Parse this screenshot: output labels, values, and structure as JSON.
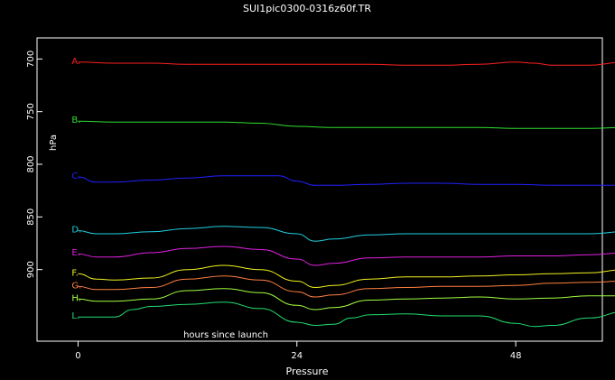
{
  "chart_data": {
    "type": "line",
    "title": "SUI1pic0300-0316z60f.TR",
    "xlabel": "Pressure",
    "ylabel": "hPa",
    "annotation": "hours since launch",
    "xlim": [
      -4.5,
      57.5
    ],
    "ylim": [
      968,
      680
    ],
    "y_inverted": true,
    "grid": false,
    "x_ticks": [
      0,
      24,
      48
    ],
    "x_tick_labels": [
      "0",
      "24",
      "48"
    ],
    "y_ticks": [
      700,
      750,
      800,
      850,
      900
    ],
    "y_tick_labels": [
      "700",
      "750",
      "800",
      "850",
      "900"
    ],
    "series": [
      {
        "name": "A.",
        "color": "#ff2020",
        "x": [
          0,
          4,
          8,
          12,
          16,
          20,
          24,
          28,
          32,
          36,
          40,
          44,
          48,
          50,
          52,
          56,
          60
        ],
        "y": [
          703,
          704,
          704,
          705,
          705,
          705,
          705,
          705,
          705,
          706,
          706,
          705,
          703,
          704,
          706,
          706,
          703
        ]
      },
      {
        "name": "B.",
        "color": "#30e030",
        "x": [
          0,
          4,
          8,
          12,
          16,
          20,
          24,
          28,
          32,
          36,
          40,
          44,
          48,
          52,
          56,
          60
        ],
        "y": [
          759,
          760,
          760,
          760,
          760,
          761,
          764,
          765,
          765,
          765,
          765,
          765,
          766,
          766,
          766,
          765
        ]
      },
      {
        "name": "C.",
        "color": "#2020ff",
        "x": [
          0,
          2,
          4,
          8,
          12,
          16,
          20,
          22,
          24,
          26,
          28,
          32,
          36,
          40,
          44,
          48,
          52,
          56,
          60
        ],
        "y": [
          812,
          817,
          817,
          815,
          813,
          811,
          811,
          811,
          816,
          820,
          820,
          819,
          818,
          818,
          819,
          819,
          820,
          820,
          820
        ]
      },
      {
        "name": "D.",
        "color": "#20d0e0",
        "x": [
          0,
          2,
          4,
          8,
          12,
          16,
          20,
          24,
          26,
          28,
          32,
          36,
          40,
          44,
          48,
          52,
          56,
          60
        ],
        "y": [
          863,
          866,
          866,
          864,
          861,
          859,
          860,
          866,
          873,
          871,
          867,
          866,
          866,
          866,
          866,
          866,
          866,
          864
        ]
      },
      {
        "name": "E.",
        "color": "#e020e0",
        "x": [
          0,
          2,
          4,
          8,
          12,
          16,
          20,
          24,
          26,
          28,
          32,
          36,
          40,
          44,
          48,
          52,
          56,
          60
        ],
        "y": [
          885,
          888,
          888,
          884,
          880,
          878,
          881,
          890,
          896,
          894,
          889,
          888,
          888,
          888,
          887,
          887,
          886,
          884
        ]
      },
      {
        "name": "F.",
        "color": "#f0f020",
        "x": [
          0,
          2,
          4,
          8,
          12,
          16,
          20,
          24,
          26,
          28,
          32,
          36,
          40,
          44,
          48,
          52,
          56,
          60
        ],
        "y": [
          904,
          909,
          910,
          908,
          900,
          896,
          900,
          911,
          917,
          915,
          909,
          907,
          907,
          906,
          905,
          904,
          903,
          900
        ]
      },
      {
        "name": "G.",
        "color": "#ff8040",
        "x": [
          0,
          2,
          4,
          8,
          12,
          16,
          20,
          24,
          26,
          28,
          32,
          36,
          40,
          44,
          48,
          52,
          56,
          60
        ],
        "y": [
          916,
          919,
          919,
          917,
          909,
          906,
          910,
          921,
          926,
          924,
          918,
          917,
          916,
          916,
          915,
          913,
          912,
          911
        ]
      },
      {
        "name": "H.",
        "color": "#a0ff40",
        "x": [
          0,
          2,
          4,
          8,
          12,
          16,
          20,
          24,
          26,
          28,
          32,
          36,
          40,
          44,
          48,
          52,
          56,
          60
        ],
        "y": [
          928,
          930,
          930,
          928,
          920,
          918,
          922,
          934,
          938,
          936,
          929,
          928,
          927,
          926,
          928,
          927,
          925,
          925
        ]
      },
      {
        "name": "L.",
        "color": "#20e070",
        "x": [
          0,
          2,
          4,
          6,
          8,
          12,
          16,
          20,
          24,
          26,
          28,
          30,
          32,
          36,
          40,
          44,
          48,
          50,
          52,
          56,
          60
        ],
        "y": [
          945,
          945,
          945,
          938,
          935,
          933,
          931,
          937,
          950,
          953,
          952,
          946,
          943,
          942,
          944,
          944,
          951,
          954,
          953,
          946,
          940
        ]
      }
    ]
  }
}
